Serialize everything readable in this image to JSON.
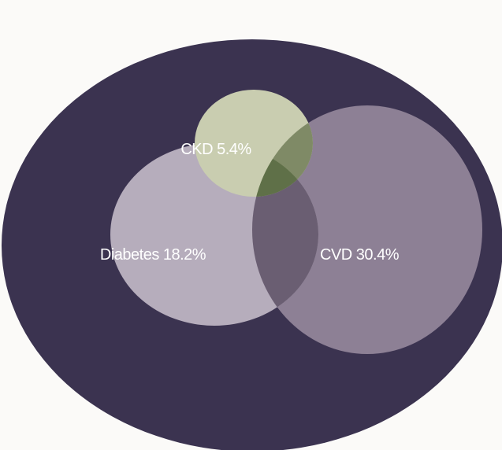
{
  "diagram": {
    "type": "venn",
    "population_color": "#3b3350",
    "sets": [
      {
        "id": "ckd",
        "label": "CKD 5.4%",
        "percent": 5.4,
        "color": "#c9cdb0"
      },
      {
        "id": "diabetes",
        "label": "Diabetes 18.2%",
        "percent": 18.2,
        "color": "#b6adbc"
      },
      {
        "id": "cvd",
        "label": "CVD 30.4%",
        "percent": 30.4,
        "color": "#8d8095"
      }
    ],
    "overlap_colors": {
      "diabetes_cvd": "#6a5e72",
      "ckd_cvd": "#7f8a66",
      "ckd_diabetes_cvd": "#5f7048"
    }
  }
}
